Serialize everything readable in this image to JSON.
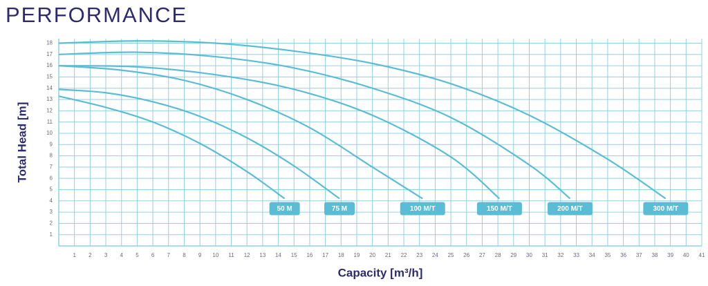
{
  "chart_data": {
    "type": "line",
    "title": "PERFORMANCE",
    "x_label": "Capacity [m³/h]",
    "y_label": "Total Head [m]",
    "color": "#5bbcd6",
    "grid": true,
    "xlim": [
      0,
      41
    ],
    "ylim": [
      0,
      18.4
    ],
    "xticks": [
      1,
      2,
      3,
      4,
      5,
      6,
      7,
      8,
      9,
      10,
      11,
      12,
      13,
      14,
      15,
      16,
      17,
      18,
      19,
      20,
      21,
      22,
      23,
      24,
      25,
      26,
      27,
      28,
      29,
      30,
      31,
      32,
      33,
      34,
      35,
      36,
      37,
      38,
      39,
      40,
      41
    ],
    "yticks": [
      1,
      2,
      3,
      4,
      5,
      6,
      7,
      8,
      9,
      10,
      11,
      12,
      13,
      14,
      15,
      16,
      17,
      18
    ],
    "series": [
      {
        "name": "50 M",
        "x": [
          0,
          3,
          6,
          9,
          12,
          14.4
        ],
        "values": [
          13.3,
          12.3,
          11.0,
          9.1,
          6.6,
          4.2
        ]
      },
      {
        "name": "75 M",
        "x": [
          0,
          3,
          6,
          9,
          12,
          15,
          17.9
        ],
        "values": [
          13.9,
          13.6,
          12.8,
          11.5,
          9.6,
          7.1,
          4.2
        ]
      },
      {
        "name": "100 M/T",
        "x": [
          0,
          4,
          8,
          12,
          16,
          20,
          23.2
        ],
        "values": [
          16,
          15.6,
          14.7,
          13.0,
          10.5,
          7.0,
          4.2
        ]
      },
      {
        "name": "150 M/T",
        "x": [
          0,
          5,
          10,
          15,
          20,
          25,
          28.1
        ],
        "values": [
          16,
          15.9,
          15.2,
          13.9,
          11.6,
          7.9,
          4.2
        ]
      },
      {
        "name": "200 M/T",
        "x": [
          0,
          5,
          10,
          15,
          20,
          25,
          30,
          32.6
        ],
        "values": [
          17,
          17.2,
          16.8,
          15.8,
          14.0,
          11.4,
          7.2,
          4.2
        ]
      },
      {
        "name": "300 M/T",
        "x": [
          0,
          5,
          10,
          15,
          20,
          25,
          30,
          35,
          38.7
        ],
        "values": [
          18,
          18.2,
          18.0,
          17.3,
          16.2,
          14.4,
          11.6,
          7.7,
          4.2
        ]
      }
    ]
  }
}
